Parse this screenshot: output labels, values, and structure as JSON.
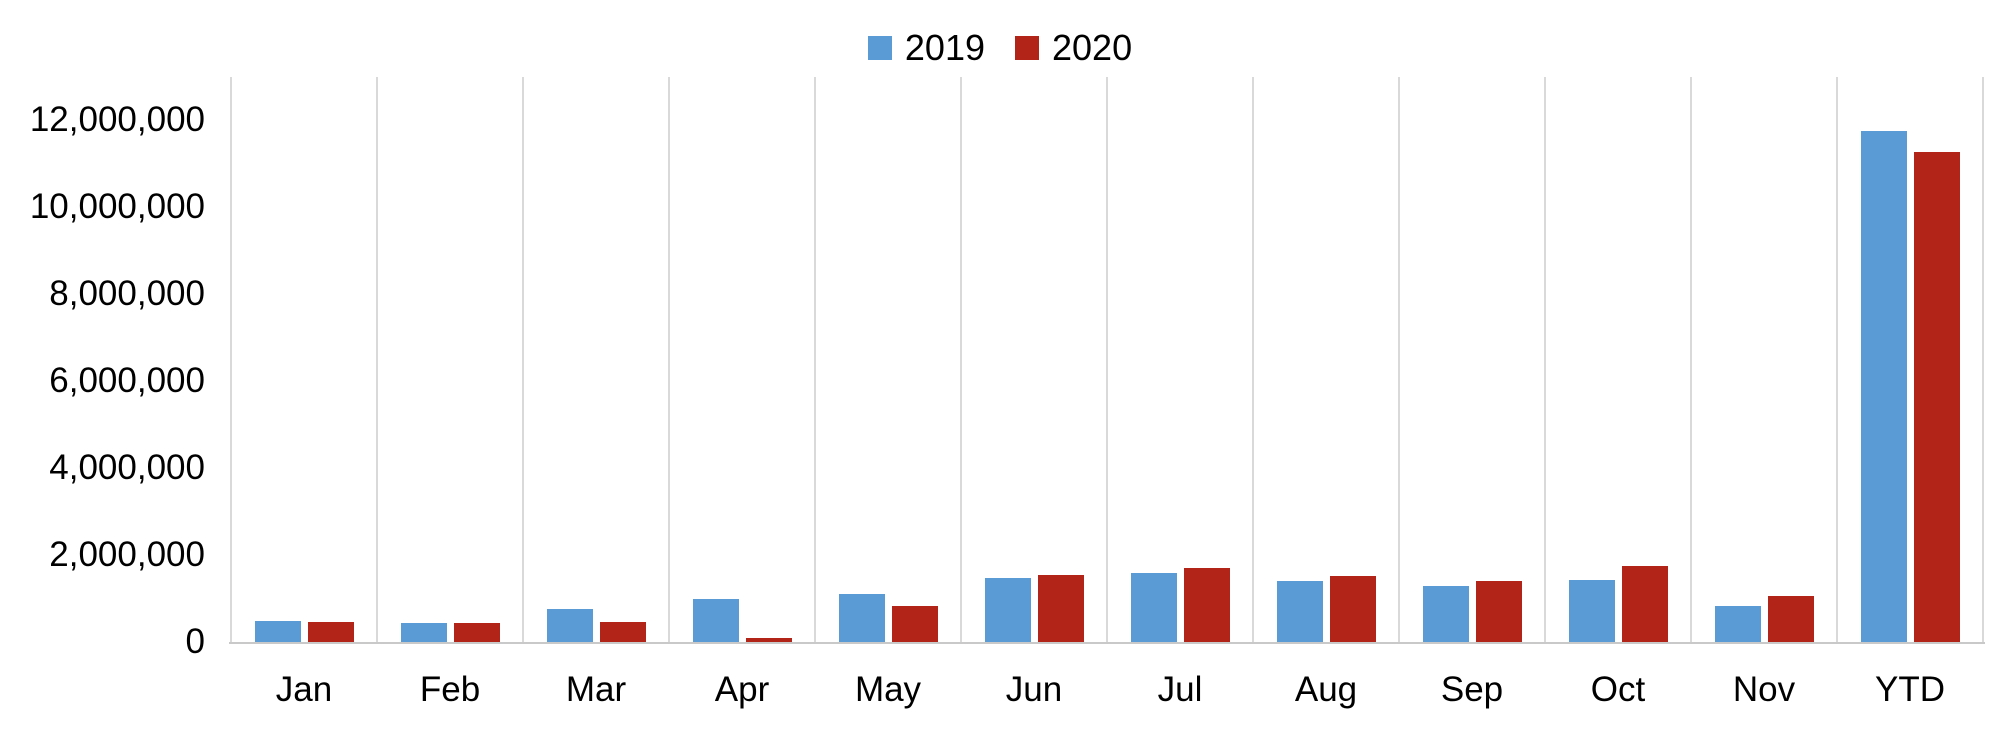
{
  "chart_data": {
    "type": "bar",
    "title": "",
    "xlabel": "",
    "ylabel": "",
    "categories": [
      "Jan",
      "Feb",
      "Mar",
      "Apr",
      "May",
      "Jun",
      "Jul",
      "Aug",
      "Sep",
      "Oct",
      "Nov",
      "YTD"
    ],
    "series": [
      {
        "name": "2019",
        "color": "#5B9BD5",
        "values": [
          480000,
          440000,
          760000,
          990000,
          1100000,
          1480000,
          1580000,
          1400000,
          1280000,
          1430000,
          820000,
          11760000
        ]
      },
      {
        "name": "2020",
        "color": "#B22418",
        "values": [
          460000,
          440000,
          460000,
          90000,
          830000,
          1550000,
          1710000,
          1520000,
          1410000,
          1750000,
          1060000,
          11280000
        ]
      }
    ],
    "ylim": [
      0,
      13000000
    ],
    "yticks": [
      0,
      2000000,
      4000000,
      6000000,
      8000000,
      10000000,
      12000000
    ],
    "ytick_labels": [
      "0",
      "2,000,000",
      "4,000,000",
      "6,000,000",
      "8,000,000",
      "10,000,000",
      "12,000,000"
    ],
    "grid": "vertical-gridlines-only",
    "legend_position": "top-center"
  },
  "colors": {
    "series_2019": "#5B9BD5",
    "series_2020": "#B22418",
    "gridline": "#D9D9D9",
    "axis_line": "#C9C9C9",
    "text": "#000000",
    "background": "#FFFFFF"
  }
}
